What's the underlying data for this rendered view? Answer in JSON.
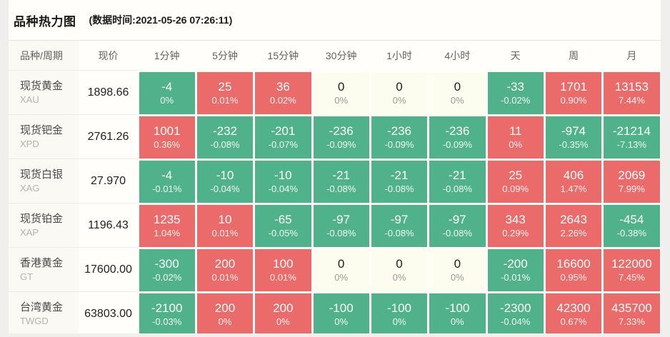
{
  "page": {
    "title": "品种热力图",
    "timestamp": "(数据时间:2021-05-26 07:26:11)"
  },
  "chart_data": {
    "type": "heatmap",
    "title": "品种热力图",
    "timestamp": "(数据时间:2021-05-26 07:26:11)",
    "row_header": "品种/周期",
    "price_header": "现价",
    "period_columns": [
      "1分钟",
      "5分钟",
      "15分钟",
      "30分钟",
      "1小时",
      "4小时",
      "天",
      "周",
      "月"
    ],
    "rows": [
      {
        "name": "现货黄金",
        "symbol": "XAU",
        "price": "1898.66",
        "changes": [
          -4,
          25,
          36,
          0,
          0,
          0,
          -33,
          1701,
          13153
        ],
        "percents": [
          "0%",
          "0.01%",
          "0.02%",
          "0%",
          "0%",
          "0%",
          "-0.02%",
          "0.90%",
          "7.44%"
        ]
      },
      {
        "name": "现货钯金",
        "symbol": "XPD",
        "price": "2761.26",
        "changes": [
          1001,
          -232,
          -201,
          -236,
          -236,
          -236,
          11,
          -974,
          -21214
        ],
        "percents": [
          "0.36%",
          "-0.08%",
          "-0.07%",
          "-0.09%",
          "-0.09%",
          "-0.09%",
          "0%",
          "-0.35%",
          "-7.13%"
        ]
      },
      {
        "name": "现货白银",
        "symbol": "XAG",
        "price": "27.970",
        "changes": [
          -4,
          -10,
          -10,
          -21,
          -21,
          -21,
          25,
          406,
          2069
        ],
        "percents": [
          "-0.01%",
          "-0.04%",
          "-0.04%",
          "-0.08%",
          "-0.08%",
          "-0.08%",
          "0.09%",
          "1.47%",
          "7.99%"
        ]
      },
      {
        "name": "现货铂金",
        "symbol": "XAP",
        "price": "1196.43",
        "changes": [
          1235,
          10,
          -65,
          -97,
          -97,
          -97,
          343,
          2643,
          -454
        ],
        "percents": [
          "1.04%",
          "0.01%",
          "-0.05%",
          "-0.08%",
          "-0.08%",
          "-0.08%",
          "0.29%",
          "2.26%",
          "-0.38%"
        ]
      },
      {
        "name": "香港黄金",
        "symbol": "GT",
        "price": "17600.00",
        "changes": [
          -300,
          200,
          100,
          0,
          0,
          0,
          -200,
          16600,
          122000
        ],
        "percents": [
          "-0.02%",
          "0.01%",
          "0.01%",
          "0%",
          "0%",
          "0%",
          "-0.01%",
          "0.95%",
          "7.45%"
        ]
      },
      {
        "name": "台湾黄金",
        "symbol": "TWGD",
        "price": "63803.00",
        "changes": [
          -2100,
          200,
          200,
          -100,
          -100,
          -100,
          -2300,
          42300,
          435700
        ],
        "percents": [
          "-0.03%",
          "0%",
          "0%",
          "0%",
          "0%",
          "0%",
          "-0.04%",
          "0.67%",
          "7.33%"
        ]
      }
    ],
    "cell_colors": {
      "rise": "#eb6a6a",
      "fall": "#4fb28a",
      "flat": "#fcfcef"
    },
    "color_semantics": "rise(red)=positive change, fall(green)=negative change, flat(cream)=zero change",
    "legend_position": "none",
    "grid": false
  }
}
